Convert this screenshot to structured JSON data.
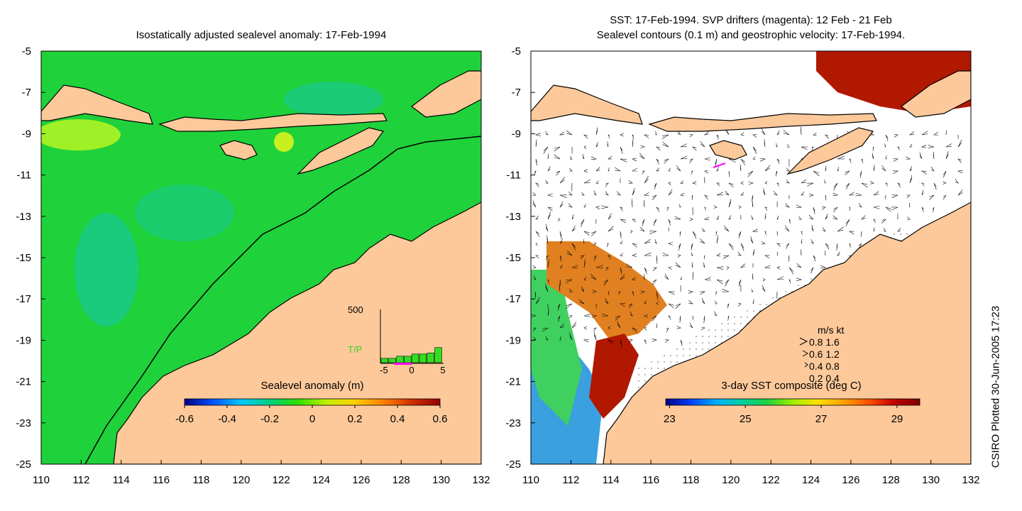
{
  "left_panel": {
    "title": "Isostatically adjusted sealevel anomaly: 17-Feb-1994",
    "colorbar": {
      "label": "Sealevel anomaly (m)",
      "ticks": [
        "-0.6",
        "-0.4",
        "-0.2",
        "0",
        "0.2",
        "0.4",
        "0.6"
      ],
      "colors": [
        "#00007f",
        "#0050ff",
        "#00c8ff",
        "#00d080",
        "#30e000",
        "#c0f000",
        "#ffd000",
        "#ff8000",
        "#d03000",
        "#900000"
      ]
    },
    "inset": {
      "top_label": "500",
      "series_label": "T/P",
      "x_ticks": [
        "-5",
        "0",
        "5"
      ],
      "bar_values": [
        40,
        40,
        60,
        60,
        80,
        80,
        90,
        140
      ]
    }
  },
  "right_panel": {
    "title_line1": "SST: 17-Feb-1994. SVP drifters (magenta): 12 Feb - 21 Feb",
    "title_line2": "Sealevel contours (0.1 m) and geostrophic velocity: 17-Feb-1994.",
    "colorbar": {
      "label": "3-day SST composite (deg C)",
      "ticks": [
        "23",
        "25",
        "27",
        "29"
      ],
      "colors": [
        "#00007f",
        "#0040ff",
        "#00b0ff",
        "#00d0a0",
        "#20d040",
        "#a0f000",
        "#ffe000",
        "#ffa000",
        "#ff5000",
        "#c00000",
        "#800000"
      ]
    },
    "velocity_key": {
      "header": "m/s  kt",
      "rows": [
        "0.8  1.6",
        "0.6  1.2",
        "0.4  0.8",
        "0.2  0.4"
      ]
    }
  },
  "axes": {
    "x_ticks": [
      "110",
      "112",
      "114",
      "116",
      "118",
      "120",
      "122",
      "124",
      "126",
      "128",
      "130",
      "132"
    ],
    "y_ticks": [
      "-5",
      "-7",
      "-9",
      "-11",
      "-13",
      "-15",
      "-17",
      "-19",
      "-21",
      "-23",
      "-25"
    ],
    "xlim": [
      110,
      132
    ],
    "ylim": [
      -25,
      -5
    ]
  },
  "credit": "CSIRO Plotted 30-Jun-2005 17:23",
  "colors": {
    "land": "#fdc99a",
    "ocean_base": "#1fd13a",
    "ocean_low": "#19c98e",
    "ocean_high": "#9ff026",
    "sst_hot": "#b01800",
    "sst_warm": "#e08020"
  }
}
